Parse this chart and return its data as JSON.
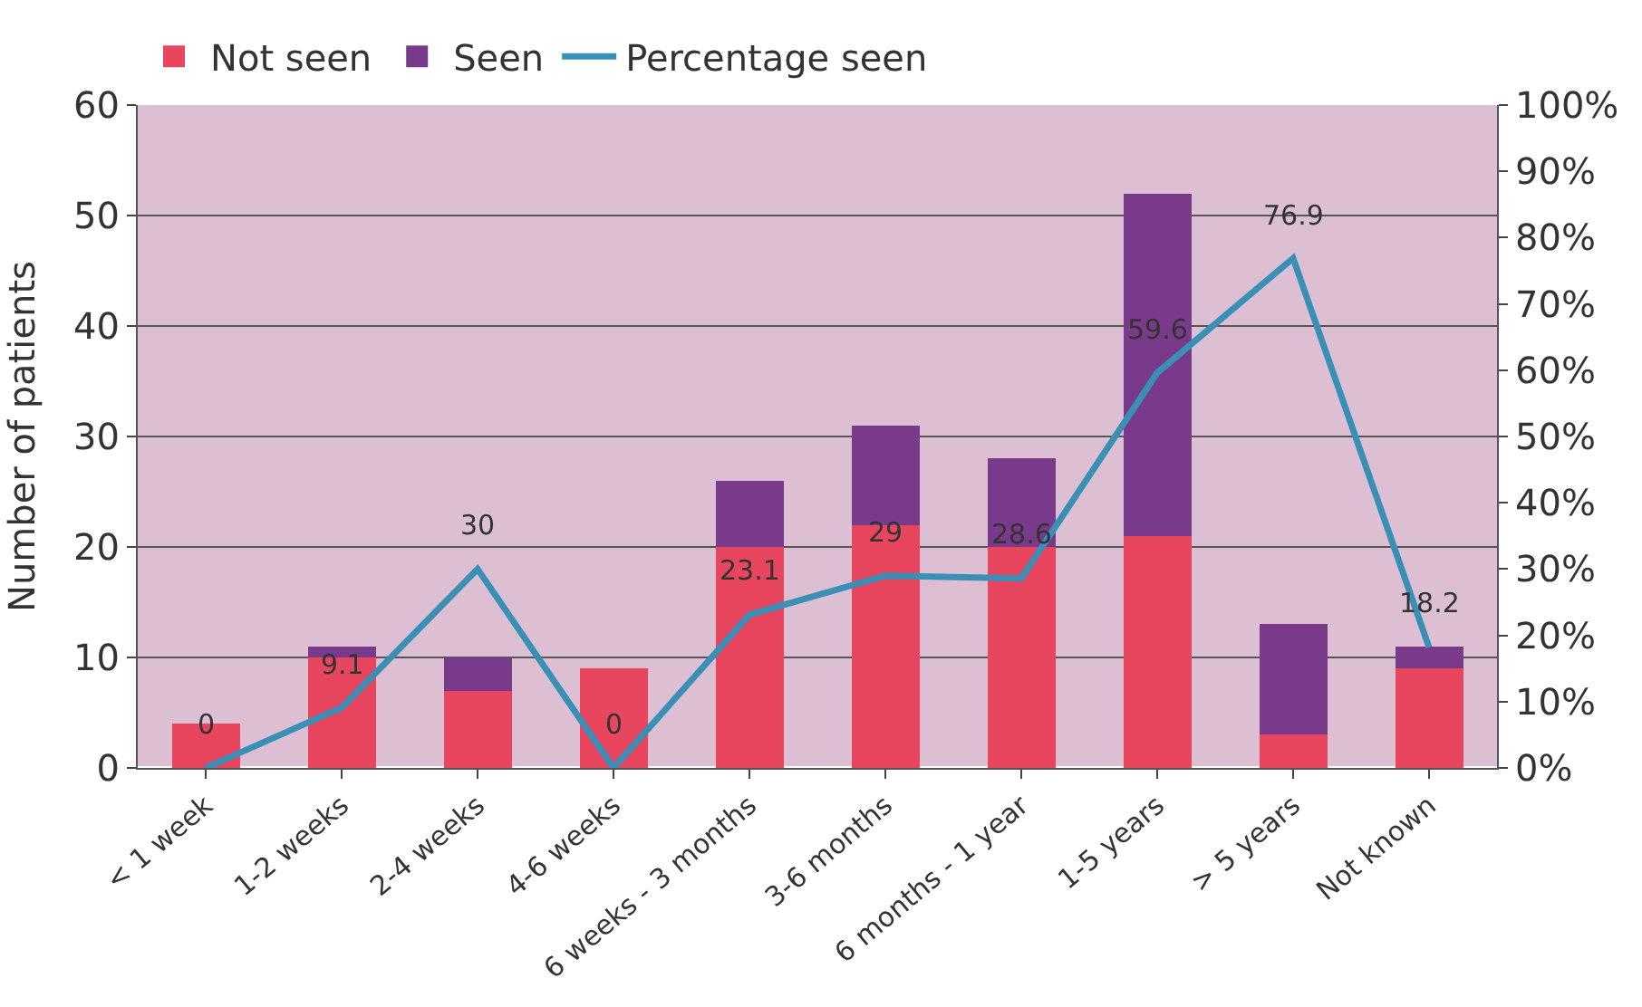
{
  "chart_data": {
    "type": "bar",
    "stacked": true,
    "ylabel": "Number of patients",
    "categories": [
      "< 1 week",
      "1-2 weeks",
      "2-4 weeks",
      "4-6 weeks",
      "6 weeks - 3 months",
      "3-6 months",
      "6 months - 1 year",
      "1-5 years",
      "> 5 years",
      "Not known"
    ],
    "series": [
      {
        "name": "Not seen",
        "color": "#e8455f",
        "values": [
          4,
          10,
          7,
          9,
          20,
          22,
          20,
          21,
          3,
          9
        ]
      },
      {
        "name": "Seen",
        "color": "#7a3a8c",
        "values": [
          0,
          1,
          3,
          0,
          6,
          9,
          8,
          31,
          10,
          2
        ]
      },
      {
        "name": "Percentage seen",
        "type": "line",
        "axis": "y2",
        "color": "#3a8fb7",
        "values": [
          0,
          9.1,
          30,
          0,
          23.1,
          29,
          28.6,
          59.6,
          76.9,
          18.2
        ],
        "value_labels": [
          "0",
          "9.1",
          "30",
          "0",
          "23.1",
          "29",
          "28.6",
          "59.6",
          "76.9",
          "18.2"
        ]
      }
    ],
    "ylim": [
      0,
      60
    ],
    "yticks": [
      0,
      10,
      20,
      30,
      40,
      50,
      60
    ],
    "y2lim": [
      0,
      100
    ],
    "y2ticks": [
      {
        "value": 0,
        "label": "0%"
      },
      {
        "value": 10,
        "label": "10%"
      },
      {
        "value": 20,
        "label": "20%"
      },
      {
        "value": 30,
        "label": "30%"
      },
      {
        "value": 40,
        "label": "40%"
      },
      {
        "value": 50,
        "label": "50%"
      },
      {
        "value": 60,
        "label": "60%"
      },
      {
        "value": 70,
        "label": "70%"
      },
      {
        "value": 80,
        "label": "80%"
      },
      {
        "value": 90,
        "label": "90%"
      },
      {
        "value": 100,
        "label": "100%"
      }
    ],
    "grid": "y",
    "legend": "top left"
  }
}
